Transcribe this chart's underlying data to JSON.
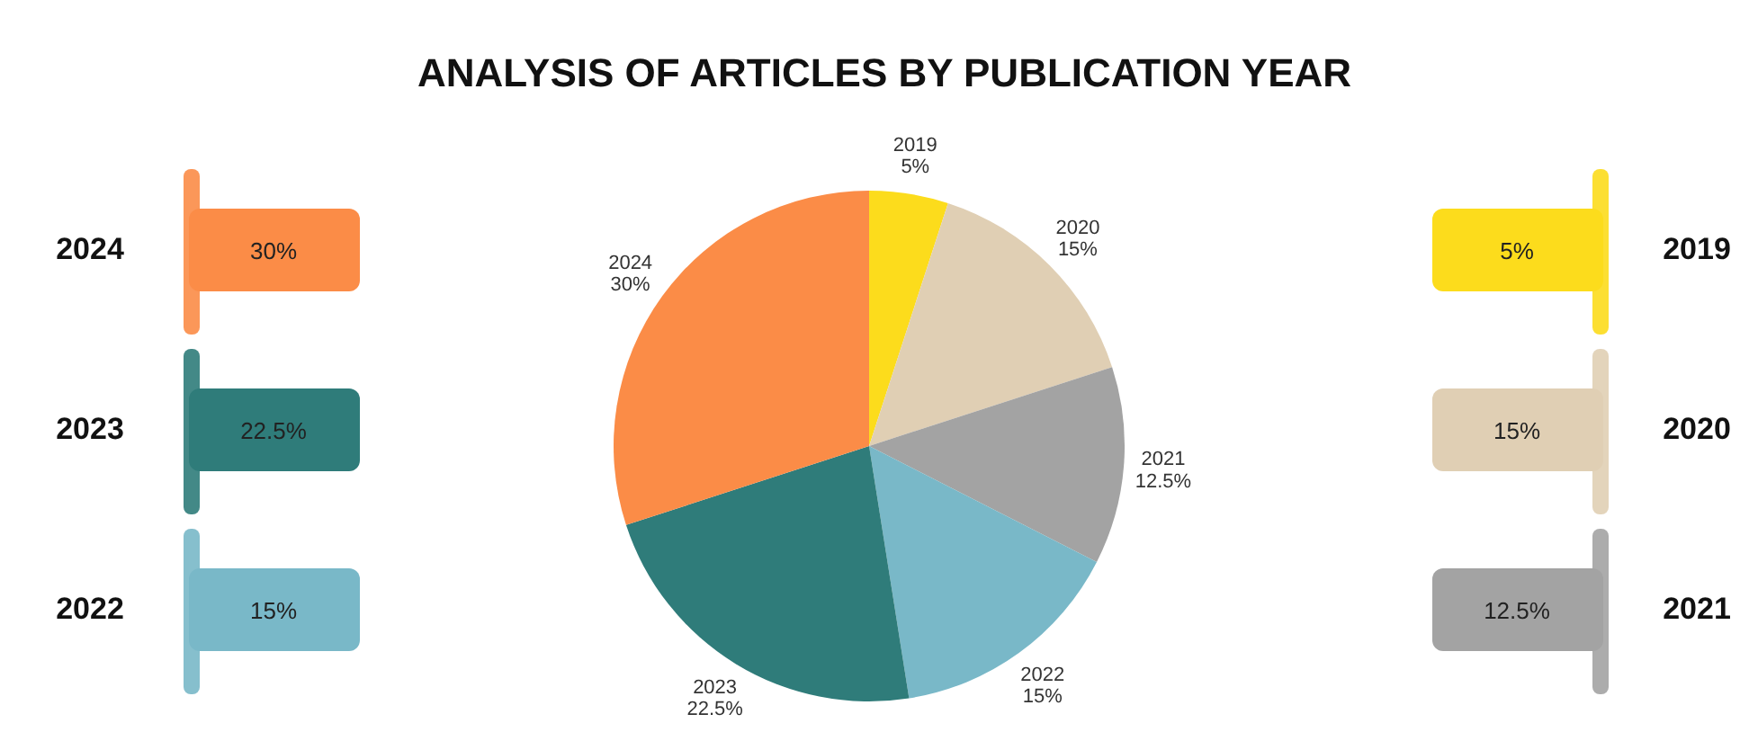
{
  "chart_data": {
    "type": "pie",
    "title": "ANALYSIS OF ARTICLES BY PUBLICATION YEAR",
    "categories": [
      "2019",
      "2020",
      "2021",
      "2022",
      "2023",
      "2024"
    ],
    "values": [
      5,
      15,
      12.5,
      15,
      22.5,
      30
    ],
    "value_labels": [
      "5%",
      "15%",
      "12.5%",
      "15%",
      "22.5%",
      "30%"
    ],
    "colors": [
      "#fcdc1c",
      "#e0cfb4",
      "#a3a3a3",
      "#79b8c8",
      "#2f7c7a",
      "#fb8c47"
    ]
  }
}
